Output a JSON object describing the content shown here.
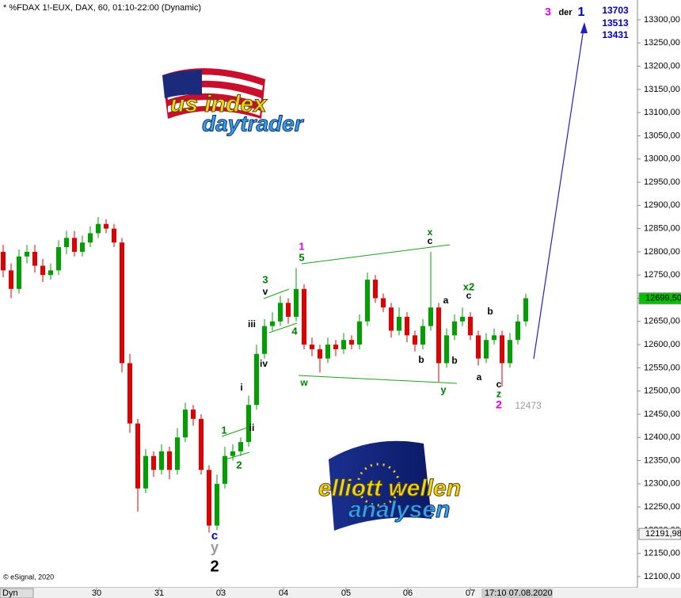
{
  "chart_data": {
    "type": "candlestick",
    "title": "* %FDAX 1!-EUX, DAX, 60, 01:10-22:00 (Dynamic)",
    "copyright": "© eSignal, 2020",
    "mode_label": "Dyn",
    "time_tag": "17:10 07.08.2020",
    "up_color": "#00a000",
    "down_color": "#e00000",
    "ylim": [
      12100,
      13300
    ],
    "yticks": [
      {
        "value": 12100,
        "label": "12100,00"
      },
      {
        "value": 12150,
        "label": "12150,00"
      },
      {
        "value": 12200,
        "label": "12200,00"
      },
      {
        "value": 12250,
        "label": "12250,00"
      },
      {
        "value": 12300,
        "label": "12300,00"
      },
      {
        "value": 12350,
        "label": "12350,00"
      },
      {
        "value": 12400,
        "label": "12400,00"
      },
      {
        "value": 12450,
        "label": "12450,00"
      },
      {
        "value": 12500,
        "label": "12500,00"
      },
      {
        "value": 12550,
        "label": "12550,00"
      },
      {
        "value": 12600,
        "label": "12600,00"
      },
      {
        "value": 12650,
        "label": "12650,00"
      },
      {
        "value": 12700,
        "label": "12700,00"
      },
      {
        "value": 12750,
        "label": "12750,00"
      },
      {
        "value": 12800,
        "label": "12800,00"
      },
      {
        "value": 12850,
        "label": "12850,00"
      },
      {
        "value": 12900,
        "label": "12900,00"
      },
      {
        "value": 12950,
        "label": "12950,00"
      },
      {
        "value": 13000,
        "label": "13000,00"
      },
      {
        "value": 13050,
        "label": "13050,00"
      },
      {
        "value": 13100,
        "label": "13100,00"
      },
      {
        "value": 13150,
        "label": "13150,00"
      },
      {
        "value": 13200,
        "label": "13200,00"
      },
      {
        "value": 13250,
        "label": "13250,00"
      },
      {
        "value": 13300,
        "label": "13300,00"
      }
    ],
    "xtick_labels": [
      "30",
      "31",
      "03",
      "04",
      "05",
      "06",
      "07"
    ],
    "last_price": {
      "value": 12699.5,
      "label": "12699,50"
    },
    "low_price": {
      "value": 12191.98,
      "label": "12191,98"
    },
    "open": [
      12800,
      12760,
      12720,
      12790,
      12800,
      12770,
      12750,
      12760,
      12810,
      12830,
      12800,
      12820,
      12840,
      12860,
      12850,
      12820,
      12560,
      12430,
      12290,
      12360,
      12330,
      12370,
      12330,
      12400,
      12460,
      12440,
      12330,
      12210,
      12300,
      12360,
      12370,
      12390,
      12470,
      12580,
      12640,
      12650,
      12690,
      12660,
      12720,
      12600,
      12590,
      12570,
      12600,
      12590,
      12610,
      12600,
      12650,
      12740,
      12700,
      12680,
      12630,
      12660,
      12620,
      12600,
      12640,
      12680,
      12560,
      12620,
      12650,
      12660,
      12620,
      12570,
      12610,
      12620,
      12560,
      12610,
      12650
    ],
    "high": [
      12815,
      12775,
      12805,
      12815,
      12815,
      12785,
      12775,
      12825,
      12845,
      12845,
      12835,
      12855,
      12875,
      12870,
      12860,
      12830,
      12580,
      12440,
      12375,
      12370,
      12385,
      12380,
      12420,
      12475,
      12470,
      12450,
      12340,
      12320,
      12380,
      12385,
      12400,
      12490,
      12600,
      12655,
      12670,
      12705,
      12700,
      12765,
      12730,
      12615,
      12600,
      12615,
      12610,
      12625,
      12620,
      12665,
      12755,
      12750,
      12710,
      12690,
      12680,
      12670,
      12630,
      12655,
      12800,
      12690,
      12635,
      12665,
      12680,
      12670,
      12630,
      12625,
      12635,
      12630,
      12625,
      12665,
      12710
    ],
    "low": [
      12745,
      12700,
      12710,
      12775,
      12755,
      12735,
      12740,
      12750,
      12795,
      12790,
      12790,
      12810,
      12830,
      12840,
      12810,
      12540,
      12410,
      12240,
      12280,
      12315,
      12320,
      12310,
      12320,
      12390,
      12425,
      12320,
      12195,
      12200,
      12290,
      12350,
      12360,
      12380,
      12460,
      12570,
      12630,
      12640,
      12645,
      12650,
      12590,
      12575,
      12540,
      12560,
      12575,
      12580,
      12590,
      12590,
      12640,
      12690,
      12670,
      12615,
      12620,
      12605,
      12585,
      12590,
      12630,
      12520,
      12550,
      12610,
      12640,
      12610,
      12555,
      12560,
      12600,
      12510,
      12550,
      12600,
      12640
    ],
    "close": [
      12760,
      12720,
      12790,
      12800,
      12770,
      12750,
      12760,
      12810,
      12830,
      12800,
      12820,
      12840,
      12860,
      12850,
      12820,
      12560,
      12430,
      12290,
      12360,
      12330,
      12370,
      12330,
      12400,
      12460,
      12440,
      12330,
      12210,
      12300,
      12360,
      12370,
      12390,
      12470,
      12580,
      12640,
      12650,
      12690,
      12660,
      12720,
      12600,
      12590,
      12570,
      12600,
      12590,
      12610,
      12600,
      12650,
      12740,
      12700,
      12680,
      12630,
      12660,
      12620,
      12600,
      12640,
      12680,
      12560,
      12620,
      12650,
      12660,
      12620,
      12570,
      12610,
      12620,
      12560,
      12610,
      12650,
      12700
    ],
    "annotations": [
      {
        "text": "3",
        "color": "#e000e0"
      },
      {
        "text": "der",
        "color": "#000000"
      },
      {
        "text": "1",
        "color": "#0000c0"
      },
      {
        "text": "13703",
        "color": "#0000c0"
      },
      {
        "text": "13513",
        "color": "#0000c0"
      },
      {
        "text": "13431",
        "color": "#0000c0"
      },
      {
        "text": "1",
        "color": "#e000e0"
      },
      {
        "text": "5",
        "color": "#008000"
      },
      {
        "text": "3",
        "color": "#008000"
      },
      {
        "text": "v",
        "color": "#000000"
      },
      {
        "text": "iii",
        "color": "#000000"
      },
      {
        "text": "4",
        "color": "#008000"
      },
      {
        "text": "iv",
        "color": "#000000"
      },
      {
        "text": "w",
        "color": "#008000"
      },
      {
        "text": "x",
        "color": "#008000"
      },
      {
        "text": "c",
        "color": "#000000"
      },
      {
        "text": "x2",
        "color": "#008000"
      },
      {
        "text": "c",
        "color": "#000000"
      },
      {
        "text": "a",
        "color": "#000000"
      },
      {
        "text": "b",
        "color": "#000000"
      },
      {
        "text": "b",
        "color": "#000000"
      },
      {
        "text": "b",
        "color": "#000000"
      },
      {
        "text": "y",
        "color": "#008000"
      },
      {
        "text": "a",
        "color": "#000000"
      },
      {
        "text": "c",
        "color": "#000000"
      },
      {
        "text": "z",
        "color": "#008000"
      },
      {
        "text": "2",
        "color": "#e000e0"
      },
      {
        "text": "12473",
        "color": "#999999"
      },
      {
        "text": "i",
        "color": "#000000"
      },
      {
        "text": "ii",
        "color": "#000000"
      },
      {
        "text": "1",
        "color": "#008000"
      },
      {
        "text": "2",
        "color": "#008000"
      },
      {
        "text": "c",
        "color": "#0000c0"
      },
      {
        "text": "y",
        "color": "#999999"
      },
      {
        "text": "2",
        "color": "#000000"
      }
    ],
    "logo_top": [
      "us index",
      "daytrader"
    ],
    "logo_bottom": [
      "elliott wellen",
      "analysen"
    ]
  }
}
